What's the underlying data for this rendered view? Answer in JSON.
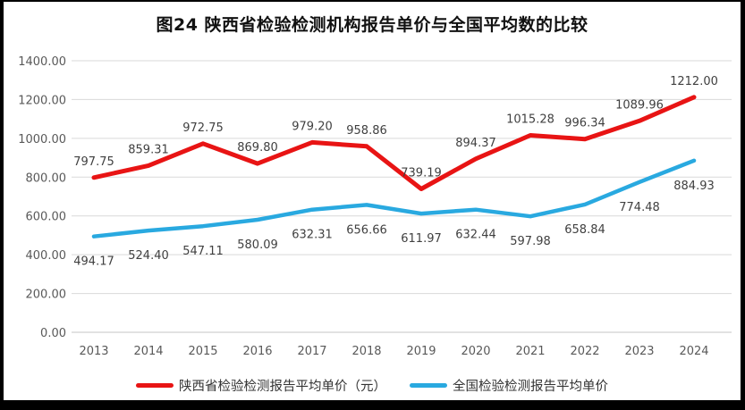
{
  "chart_data": {
    "type": "line",
    "title": "图24 陕西省检验检测机构报告单价与全国平均数的比较",
    "categories": [
      "2013",
      "2014",
      "2015",
      "2016",
      "2017",
      "2018",
      "2019",
      "2020",
      "2021",
      "2022",
      "2023",
      "2024"
    ],
    "series": [
      {
        "name": "陕西省检验检测报告平均单价（元）",
        "color": "#e81414",
        "line_width": 5,
        "label_position": "above",
        "values": [
          797.75,
          859.31,
          972.75,
          869.8,
          979.2,
          958.86,
          739.19,
          894.37,
          1015.28,
          996.34,
          1089.96,
          1212.0
        ]
      },
      {
        "name": "全国检验检测报告平均单价",
        "color": "#29a9e0",
        "line_width": 4.5,
        "label_position": "below",
        "values": [
          494.17,
          524.4,
          547.11,
          580.09,
          632.31,
          656.66,
          611.97,
          632.44,
          597.98,
          658.84,
          774.48,
          884.93
        ]
      }
    ],
    "y_tick_labels": [
      "1400.00",
      "1200.00",
      "1000.00",
      "800.00",
      "600.00",
      "400.00",
      "200.00",
      "0.00"
    ],
    "ylim": [
      0,
      1400
    ],
    "y_step": 200,
    "grid": true,
    "legend_position": "bottom",
    "data_label_decimals": 2
  },
  "colors": {
    "grid": "#d9d9d9",
    "baseline": "#c6c6c6",
    "axis_text": "#595959",
    "data_label_text": "#404040",
    "frame_border": "#000000",
    "background": "#ffffff"
  }
}
